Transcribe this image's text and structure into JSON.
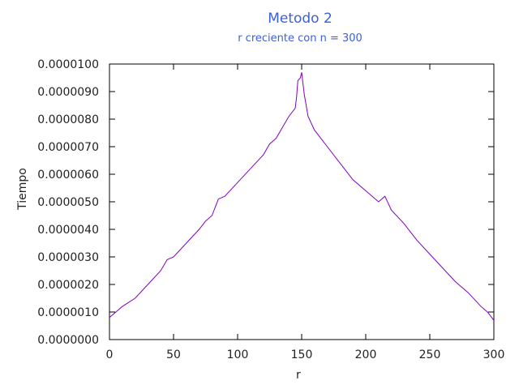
{
  "chart_data": {
    "type": "line",
    "title": "Metodo 2",
    "subtitle": "r creciente con n = 300",
    "xlabel": "r",
    "ylabel": "Tiempo",
    "xlim": [
      0,
      300
    ],
    "ylim": [
      0.0,
      1e-05
    ],
    "grid": false,
    "line_color": "#7f00c0",
    "x_ticks": [
      "0",
      "50",
      "100",
      "150",
      "200",
      "250",
      "300"
    ],
    "y_ticks": [
      "0.0000000",
      "0.0000010",
      "0.0000020",
      "0.0000030",
      "0.0000040",
      "0.0000050",
      "0.0000060",
      "0.0000070",
      "0.0000080",
      "0.0000090",
      "0.0000100"
    ],
    "series": [
      {
        "x": [
          0,
          5,
          10,
          20,
          30,
          40,
          45,
          50,
          60,
          70,
          75,
          80,
          85,
          90,
          100,
          110,
          120,
          125,
          130,
          135,
          140,
          145,
          146,
          147,
          149,
          150,
          152,
          155,
          160,
          170,
          180,
          190,
          200,
          210,
          215,
          220,
          230,
          240,
          250,
          260,
          270,
          280,
          290,
          295,
          300
        ],
        "y": [
          8e-07,
          1e-06,
          1.2e-06,
          1.5e-06,
          2e-06,
          2.5e-06,
          2.9e-06,
          3e-06,
          3.5e-06,
          4e-06,
          4.3e-06,
          4.5e-06,
          5.1e-06,
          5.2e-06,
          5.7e-06,
          6.2e-06,
          6.7e-06,
          7.1e-06,
          7.3e-06,
          7.7e-06,
          8.1e-06,
          8.4e-06,
          8.8e-06,
          9.4e-06,
          9.5e-06,
          9.7e-06,
          8.9e-06,
          8.1e-06,
          7.6e-06,
          7e-06,
          6.4e-06,
          5.8e-06,
          5.4e-06,
          5e-06,
          5.2e-06,
          4.7e-06,
          4.2e-06,
          3.6e-06,
          3.1e-06,
          2.6e-06,
          2.1e-06,
          1.7e-06,
          1.2e-06,
          1e-06,
          7e-07
        ]
      }
    ]
  }
}
